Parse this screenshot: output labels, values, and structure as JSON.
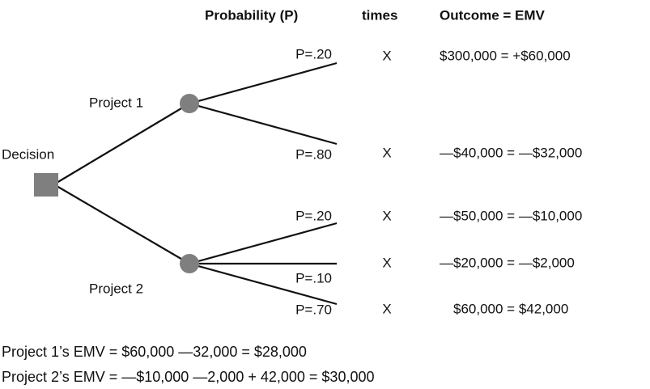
{
  "header": {
    "probability": "Probability (P)",
    "times": "times",
    "outcome": "Outcome = EMV"
  },
  "nodes": {
    "decision": "Decision",
    "project1": "Project 1",
    "project2": "Project 2"
  },
  "branches": [
    {
      "probability": "P=.20",
      "times": "X",
      "outcome": "$300,000 = +$60,000"
    },
    {
      "probability": "P=.80",
      "times": "X",
      "outcome": "—$40,000 = —$32,000"
    },
    {
      "probability": "P=.20",
      "times": "X",
      "outcome": "—$50,000 = —$10,000"
    },
    {
      "probability": "P=.10",
      "times": "X",
      "outcome": "—$20,000 = —$2,000"
    },
    {
      "probability": "P=.70",
      "times": "X",
      "outcome": "$60,000 = $42,000"
    }
  ],
  "summary": [
    "Project 1’s EMV = $60,000 —32,000 = $28,000",
    "Project 2’s EMV = —$10,000 —2,000 + 42,000 = $30,000"
  ]
}
